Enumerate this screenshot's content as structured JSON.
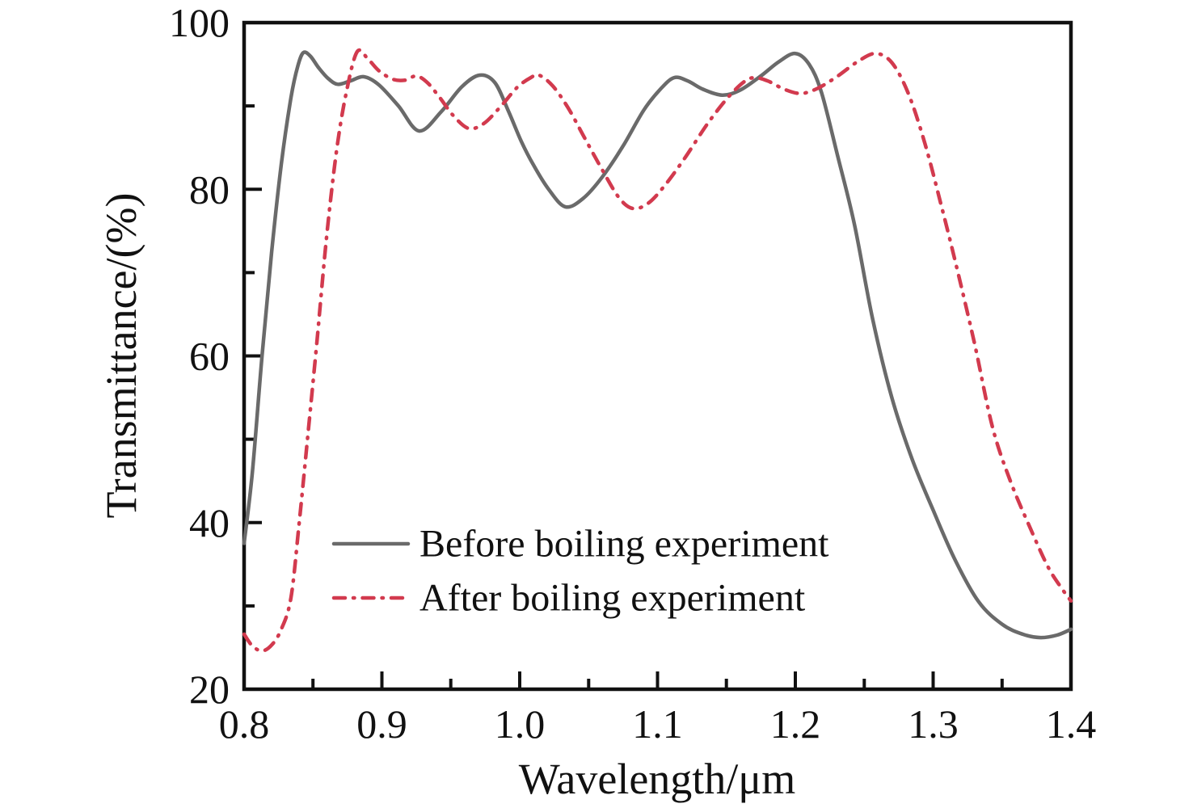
{
  "figure": {
    "background": "#ffffff",
    "axis_color": "#111111",
    "tick_style": "inward"
  },
  "chart_data": {
    "type": "line",
    "title": "",
    "xlabel": "Wavelength/μm",
    "ylabel": "Transmittance/(%)",
    "xlim": [
      0.8,
      1.4
    ],
    "ylim": [
      20,
      100
    ],
    "grid": false,
    "xticks": {
      "major": [
        0.8,
        0.9,
        1.0,
        1.1,
        1.2,
        1.3,
        1.4
      ],
      "labels": [
        "0.8",
        "0.9",
        "1.0",
        "1.1",
        "1.2",
        "1.3",
        "1.4"
      ],
      "minor": [
        0.85,
        0.95,
        1.05,
        1.15,
        1.25,
        1.35
      ]
    },
    "yticks": {
      "major": [
        20,
        40,
        60,
        80,
        100
      ],
      "labels": [
        "20",
        "40",
        "60",
        "80",
        "100"
      ],
      "minor": [
        30,
        50,
        70,
        90
      ]
    },
    "legend": {
      "position": "inside-lower-left",
      "entries": [
        "Before boiling experiment",
        "After boiling experiment"
      ]
    },
    "series": [
      {
        "name": "Before boiling experiment",
        "color": "#6a6a6a",
        "line_style": "solid",
        "line_width": 4.5,
        "x": [
          0.8,
          0.806,
          0.813,
          0.82,
          0.827,
          0.834,
          0.839,
          0.843,
          0.848,
          0.854,
          0.861,
          0.868,
          0.877,
          0.887,
          0.898,
          0.912,
          0.927,
          0.943,
          0.958,
          0.971,
          0.982,
          0.992,
          1.001,
          1.01,
          1.021,
          1.033,
          1.046,
          1.06,
          1.075,
          1.09,
          1.102,
          1.112,
          1.122,
          1.133,
          1.147,
          1.16,
          1.175,
          1.188,
          1.2,
          1.21,
          1.219,
          1.231,
          1.243,
          1.256,
          1.27,
          1.285,
          1.3,
          1.316,
          1.333,
          1.35,
          1.365,
          1.378,
          1.39,
          1.4
        ],
        "y": [
          37.5,
          46.0,
          60.0,
          72.5,
          83.0,
          91.0,
          94.8,
          96.4,
          96.0,
          94.6,
          93.3,
          92.6,
          93.0,
          93.5,
          92.5,
          90.0,
          87.0,
          89.3,
          92.3,
          93.7,
          92.8,
          89.3,
          85.8,
          82.9,
          80.0,
          77.9,
          78.9,
          81.5,
          85.2,
          89.5,
          92.0,
          93.4,
          93.0,
          92.0,
          91.3,
          91.9,
          93.6,
          95.3,
          96.3,
          95.0,
          91.6,
          83.8,
          75.7,
          64.5,
          55.0,
          47.5,
          41.5,
          35.5,
          30.5,
          27.8,
          26.6,
          26.2,
          26.5,
          27.2
        ]
      },
      {
        "name": "After boiling experiment",
        "color": "#d23a4e",
        "line_style": "dash-dot",
        "line_width": 4.5,
        "x": [
          0.8,
          0.806,
          0.813,
          0.82,
          0.827,
          0.834,
          0.84,
          0.846,
          0.853,
          0.86,
          0.867,
          0.874,
          0.882,
          0.89,
          0.898,
          0.908,
          0.917,
          0.925,
          0.933,
          0.942,
          0.952,
          0.963,
          0.974,
          0.986,
          0.998,
          1.008,
          1.014,
          1.024,
          1.035,
          1.047,
          1.06,
          1.072,
          1.082,
          1.093,
          1.105,
          1.12,
          1.136,
          1.15,
          1.162,
          1.17,
          1.18,
          1.192,
          1.204,
          1.216,
          1.23,
          1.245,
          1.258,
          1.27,
          1.282,
          1.294,
          1.306,
          1.318,
          1.33,
          1.343,
          1.356,
          1.37,
          1.383,
          1.392,
          1.4
        ],
        "y": [
          26.6,
          25.2,
          24.6,
          25.3,
          27.2,
          31.0,
          40.0,
          50.0,
          62.0,
          74.5,
          84.5,
          91.5,
          96.5,
          95.6,
          94.2,
          93.2,
          93.1,
          93.6,
          92.8,
          91.0,
          88.8,
          87.3,
          87.9,
          89.9,
          92.2,
          93.4,
          93.7,
          92.4,
          89.8,
          86.2,
          82.3,
          79.0,
          77.7,
          78.3,
          80.4,
          83.8,
          87.8,
          90.8,
          92.8,
          93.4,
          93.0,
          92.0,
          91.5,
          92.1,
          93.5,
          95.3,
          96.3,
          95.2,
          91.5,
          85.5,
          78.0,
          70.0,
          61.5,
          51.5,
          45.0,
          39.5,
          34.8,
          32.4,
          30.6
        ]
      }
    ]
  }
}
